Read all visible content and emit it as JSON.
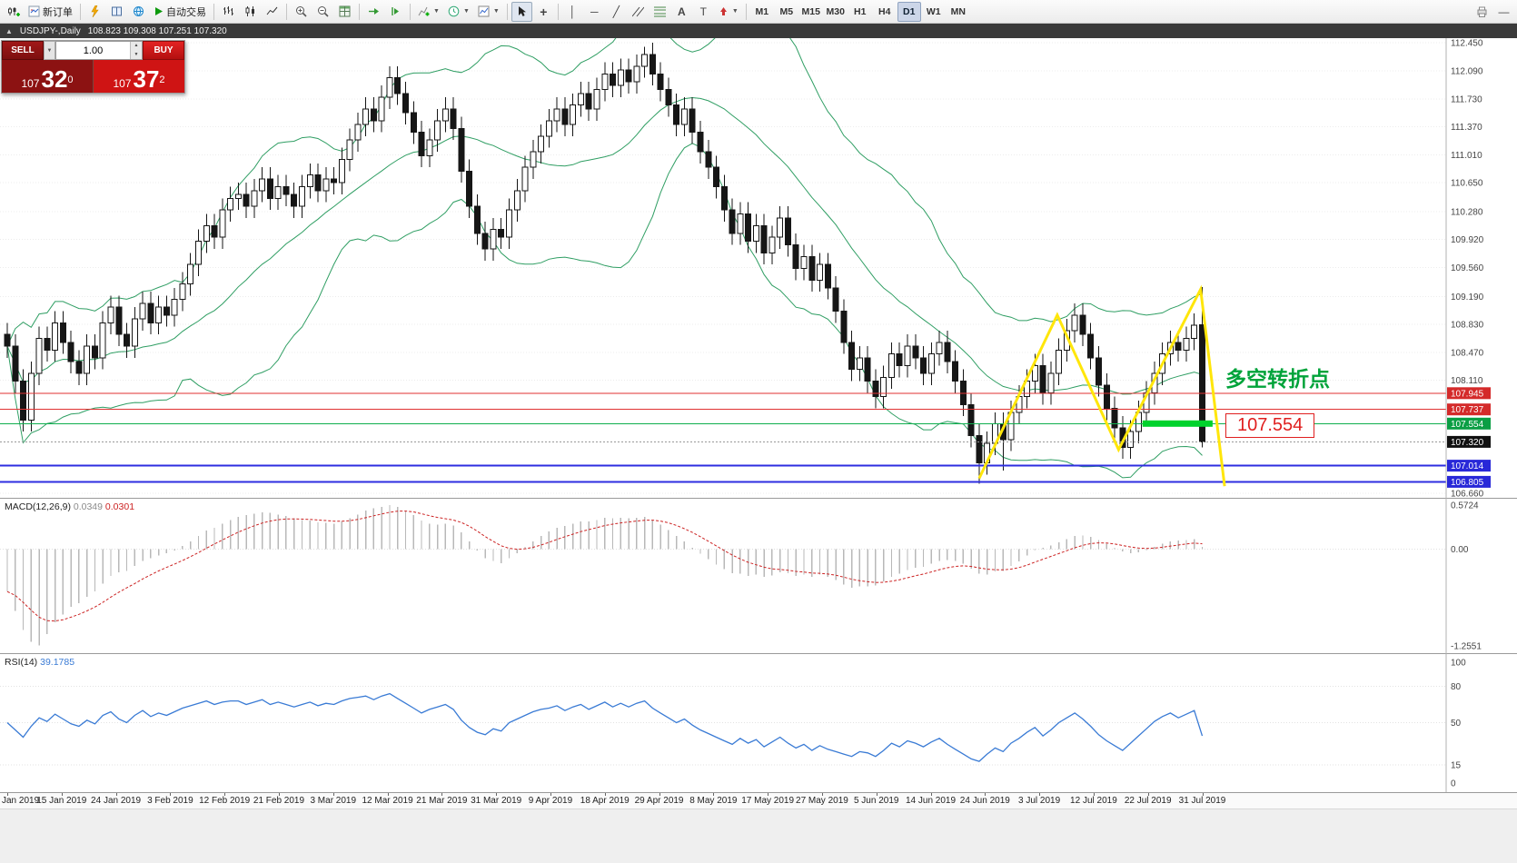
{
  "icons": {
    "collapse": "▲",
    "dropdown": "▼",
    "spin_up": "▲",
    "spin_down": "▼",
    "vline": "│",
    "hline": "─",
    "trendline": "╱",
    "text_tool": "A",
    "label_tool": "T",
    "crosshair": "+",
    "minimize": "—"
  },
  "toolbar": {
    "new_order": "新订单",
    "auto_trading": "自动交易",
    "timeframes": [
      "M1",
      "M5",
      "M15",
      "M30",
      "H1",
      "H4",
      "D1",
      "W1",
      "MN"
    ],
    "active_timeframe": "D1"
  },
  "chart_title": {
    "symbol": "USDJPY-,Daily",
    "ohlc": "108.823 109.308 107.251 107.320"
  },
  "trade_panel": {
    "sell_label": "SELL",
    "buy_label": "BUY",
    "lot": "1.00",
    "sell_price": {
      "head": "107",
      "main": "32",
      "pip": "0"
    },
    "buy_price": {
      "head": "107",
      "main": "37",
      "pip": "2"
    }
  },
  "annotations": {
    "turning_point": "多空转折点",
    "price_label": "107.554"
  },
  "chart_data": {
    "type": "candlestick",
    "symbol": "USDJPY",
    "period": "Daily",
    "view_range": {
      "max": 112.51,
      "min": 106.6
    },
    "price_ticks": [
      112.45,
      112.09,
      111.73,
      111.37,
      111.01,
      110.65,
      110.28,
      109.92,
      109.56,
      109.19,
      108.83,
      108.47,
      108.11,
      106.66
    ],
    "x_labels": [
      "Jan 2019",
      "15 Jan 2019",
      "24 Jan 2019",
      "3 Feb 2019",
      "12 Feb 2019",
      "21 Feb 2019",
      "3 Mar 2019",
      "12 Mar 2019",
      "21 Mar 2019",
      "31 Mar 2019",
      "9 Apr 2019",
      "18 Apr 2019",
      "29 Apr 2019",
      "8 May 2019",
      "17 May 2019",
      "27 May 2019",
      "5 Jun 2019",
      "14 Jun 2019",
      "24 Jun 2019",
      "3 Jul 2019",
      "12 Jul 2019",
      "22 Jul 2019",
      "31 Jul 2019"
    ],
    "first_open": 108.7,
    "wick": 0.15,
    "closes": [
      108.55,
      108.1,
      107.6,
      108.2,
      108.65,
      108.5,
      108.85,
      108.6,
      108.35,
      108.2,
      108.55,
      108.4,
      108.85,
      109.05,
      108.7,
      108.55,
      108.9,
      109.1,
      108.85,
      109.05,
      108.95,
      109.15,
      109.35,
      109.6,
      109.9,
      110.1,
      109.95,
      110.3,
      110.45,
      110.5,
      110.35,
      110.55,
      110.7,
      110.45,
      110.6,
      110.5,
      110.35,
      110.6,
      110.75,
      110.55,
      110.7,
      110.65,
      110.95,
      111.2,
      111.4,
      111.6,
      111.45,
      111.75,
      112.0,
      111.8,
      111.55,
      111.3,
      111.0,
      111.2,
      111.45,
      111.6,
      111.35,
      110.8,
      110.35,
      110.0,
      109.8,
      110.05,
      109.95,
      110.3,
      110.55,
      110.85,
      111.05,
      111.25,
      111.45,
      111.6,
      111.4,
      111.65,
      111.8,
      111.6,
      111.85,
      112.05,
      111.9,
      112.1,
      111.95,
      112.15,
      112.3,
      112.05,
      111.85,
      111.65,
      111.4,
      111.6,
      111.3,
      111.05,
      110.85,
      110.6,
      110.3,
      110.0,
      110.25,
      109.9,
      110.1,
      109.75,
      109.95,
      110.2,
      109.85,
      109.55,
      109.7,
      109.4,
      109.6,
      109.3,
      109.0,
      108.6,
      108.25,
      108.4,
      108.1,
      107.9,
      108.15,
      108.45,
      108.3,
      108.55,
      108.4,
      108.2,
      108.45,
      108.6,
      108.35,
      108.1,
      107.8,
      107.4,
      107.05,
      107.3,
      107.55,
      107.35,
      107.7,
      107.9,
      108.1,
      108.3,
      107.95,
      108.2,
      108.5,
      108.75,
      108.95,
      108.7,
      108.4,
      108.05,
      107.75,
      107.5,
      107.25,
      107.45,
      107.7,
      107.95,
      108.2,
      108.45,
      108.6,
      108.5,
      108.65,
      108.82,
      107.32
    ],
    "overrides": {
      "80": {
        "h": 112.4
      },
      "122": {
        "l": 106.78
      },
      "125": {
        "l": 106.95
      },
      "150": {
        "o": 108.823,
        "h": 109.308,
        "l": 107.251,
        "c": 107.32
      }
    },
    "bollinger": {
      "period": 20,
      "dev": 2,
      "color": "#2f9e63"
    },
    "hlines": [
      {
        "price": 107.945,
        "color": "#e03232",
        "width": 1,
        "label": "107.945",
        "label_bg": "#d42a2a"
      },
      {
        "price": 107.737,
        "color": "#e03232",
        "width": 1,
        "label": "107.737",
        "label_bg": "#d42a2a"
      },
      {
        "price": 107.554,
        "color": "#0faf4e",
        "width": 1,
        "label": "107.554",
        "label_bg": "#0a9e44"
      },
      {
        "price": 107.014,
        "color": "#2e2ee0",
        "width": 2,
        "label": "107.014",
        "label_bg": "#2828d8"
      },
      {
        "price": 106.805,
        "color": "#2e2ee0",
        "width": 2,
        "label": "106.805",
        "label_bg": "#2828d8"
      }
    ],
    "bid_line": {
      "price": 107.32,
      "label": "107.320",
      "line_color": "#999999",
      "label_bg": "#101010"
    },
    "thick_line": {
      "price": 107.554,
      "from_bar": 142.5,
      "to_bar": 151.3,
      "thickness": 7,
      "color": "#00d22c"
    },
    "zigzag": {
      "color": "#ffe60a",
      "width": 3,
      "points": [
        [
          122,
          106.85
        ],
        [
          131.8,
          108.95
        ],
        [
          139.5,
          107.22
        ],
        [
          149.8,
          109.28
        ],
        [
          152.8,
          106.75
        ]
      ]
    },
    "indicators": {
      "macd": {
        "name": "MACD(12,26,9)",
        "value_main": "0.0349",
        "value_signal": "0.0301",
        "range": {
          "max": 0.5724,
          "min": -1.2551
        },
        "axis_labels": [
          {
            "v": 0.5724,
            "t": "0.5724"
          },
          {
            "v": 0,
            "t": "0.00"
          },
          {
            "v": -1.2551,
            "t": "-1.2551"
          }
        ],
        "hist_color": "#b8b8b8",
        "signal_color": "#cc2222",
        "signal_period": 9,
        "hist": [
          -0.55,
          -0.8,
          -1.05,
          -1.2,
          -1.25,
          -1.1,
          -0.95,
          -0.85,
          -0.75,
          -0.7,
          -0.62,
          -0.55,
          -0.45,
          -0.35,
          -0.3,
          -0.28,
          -0.22,
          -0.15,
          -0.12,
          -0.08,
          -0.05,
          -0.02,
          0.04,
          0.1,
          0.17,
          0.24,
          0.28,
          0.33,
          0.38,
          0.42,
          0.44,
          0.46,
          0.48,
          0.47,
          0.45,
          0.43,
          0.4,
          0.38,
          0.37,
          0.35,
          0.34,
          0.33,
          0.36,
          0.4,
          0.45,
          0.5,
          0.53,
          0.55,
          0.57,
          0.55,
          0.5,
          0.44,
          0.37,
          0.33,
          0.32,
          0.33,
          0.31,
          0.22,
          0.1,
          -0.02,
          -0.12,
          -0.15,
          -0.18,
          -0.12,
          -0.05,
          0.03,
          0.1,
          0.17,
          0.23,
          0.28,
          0.3,
          0.33,
          0.36,
          0.36,
          0.38,
          0.41,
          0.4,
          0.41,
          0.4,
          0.41,
          0.42,
          0.38,
          0.32,
          0.25,
          0.17,
          0.1,
          0.02,
          -0.06,
          -0.13,
          -0.2,
          -0.26,
          -0.31,
          -0.32,
          -0.35,
          -0.33,
          -0.36,
          -0.34,
          -0.3,
          -0.31,
          -0.35,
          -0.33,
          -0.36,
          -0.33,
          -0.36,
          -0.4,
          -0.46,
          -0.5,
          -0.48,
          -0.48,
          -0.47,
          -0.42,
          -0.36,
          -0.32,
          -0.27,
          -0.24,
          -0.23,
          -0.19,
          -0.15,
          -0.14,
          -0.15,
          -0.19,
          -0.25,
          -0.32,
          -0.33,
          -0.29,
          -0.28,
          -0.22,
          -0.16,
          -0.08,
          -0.01,
          0.02,
          0.05,
          0.09,
          0.13,
          0.17,
          0.18,
          0.16,
          0.12,
          0.07,
          0.02,
          -0.03,
          -0.05,
          -0.04,
          -0.01,
          0.03,
          0.07,
          0.1,
          0.11,
          0.12,
          0.13,
          0.03
        ]
      },
      "rsi": {
        "name": "RSI(14)",
        "value": "39.1785",
        "range": {
          "max": 100,
          "min": 0
        },
        "levels": [
          80,
          50,
          15
        ],
        "axis_labels": [
          {
            "v": 100,
            "t": "100"
          },
          {
            "v": 80,
            "t": "80"
          },
          {
            "v": 50,
            "t": "50"
          },
          {
            "v": 15,
            "t": "15"
          },
          {
            "v": 0,
            "t": "0"
          }
        ],
        "color": "#3a7bd5",
        "series": [
          50,
          44,
          38,
          47,
          54,
          51,
          57,
          53,
          49,
          47,
          52,
          49,
          56,
          59,
          53,
          50,
          56,
          60,
          55,
          58,
          56,
          59,
          62,
          64,
          66,
          68,
          65,
          67,
          68,
          68,
          65,
          67,
          69,
          65,
          67,
          65,
          63,
          65,
          67,
          64,
          66,
          65,
          68,
          70,
          71,
          72,
          69,
          72,
          74,
          70,
          66,
          62,
          58,
          61,
          63,
          65,
          61,
          52,
          46,
          42,
          40,
          45,
          43,
          50,
          53,
          56,
          59,
          61,
          62,
          64,
          60,
          63,
          65,
          61,
          64,
          67,
          63,
          66,
          63,
          66,
          68,
          62,
          58,
          54,
          50,
          53,
          48,
          44,
          41,
          38,
          35,
          32,
          37,
          33,
          36,
          30,
          34,
          38,
          33,
          29,
          32,
          27,
          31,
          28,
          26,
          24,
          22,
          26,
          25,
          22,
          27,
          33,
          30,
          35,
          33,
          30,
          34,
          37,
          32,
          28,
          24,
          20,
          18,
          24,
          29,
          26,
          33,
          37,
          42,
          46,
          39,
          44,
          50,
          54,
          58,
          53,
          47,
          40,
          35,
          31,
          27,
          33,
          39,
          45,
          51,
          55,
          58,
          54,
          57,
          60,
          39
        ]
      }
    }
  }
}
